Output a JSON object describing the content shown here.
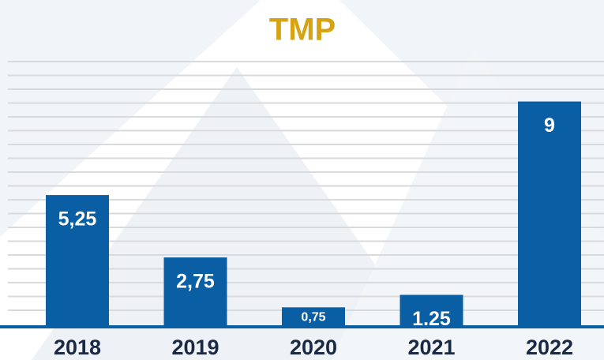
{
  "chart_data": {
    "type": "bar",
    "title": "TMP",
    "categories": [
      "2018",
      "2019",
      "2020",
      "2021",
      "2022"
    ],
    "values": [
      5.25,
      2.75,
      0.75,
      1.25,
      9
    ],
    "value_labels": [
      "5,25",
      "2,75",
      "0,75",
      "1,25",
      "9"
    ],
    "color": "#0a5ea3",
    "ylim": [
      0,
      10.6
    ]
  }
}
